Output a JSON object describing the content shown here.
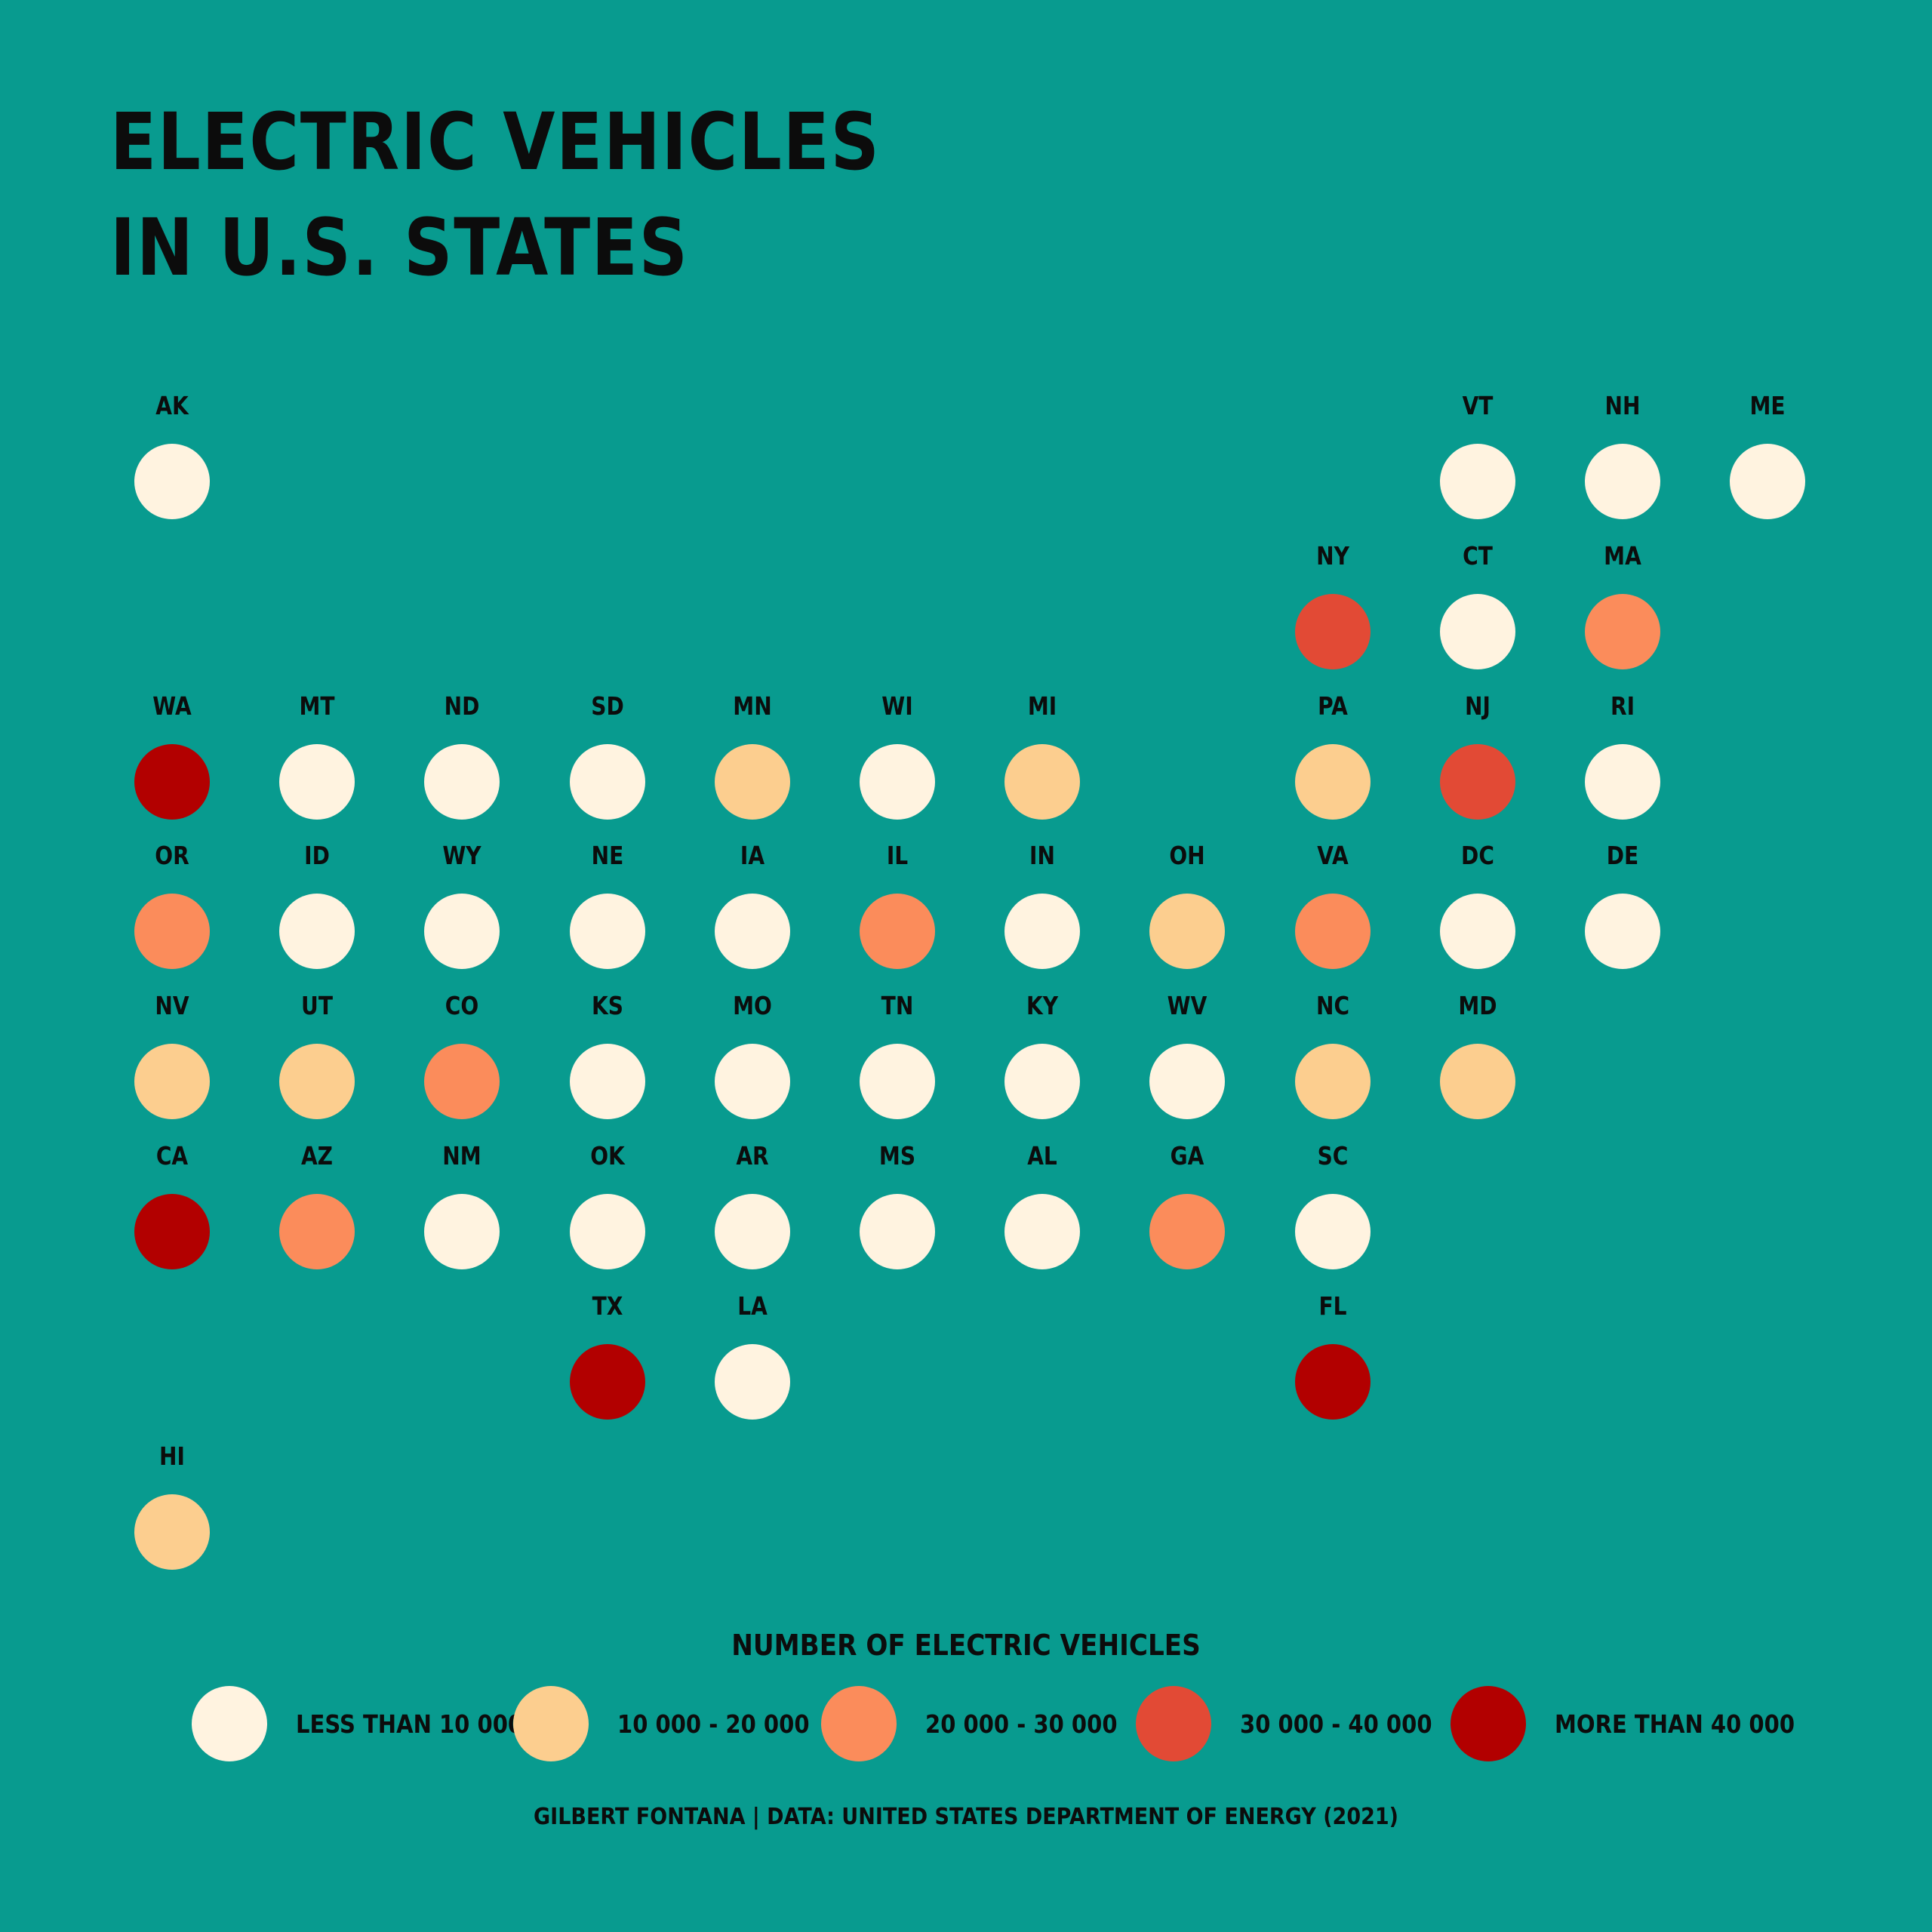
{
  "title_lines": [
    "ELECTRIC VEHICLES",
    "IN U.S. STATES"
  ],
  "colors": {
    "background": "#089b8f",
    "text": "#0c0c0c",
    "classes": [
      "#fff3e0",
      "#fcce8f",
      "#fb8c5b",
      "#e24a35",
      "#b20000"
    ]
  },
  "chart_data": {
    "type": "tile-map",
    "legend_title": "NUMBER OF ELECTRIC VEHICLES",
    "classes": [
      {
        "label": "LESS THAN 10 000",
        "color": "#fff3e0"
      },
      {
        "label": "10 000 - 20 000",
        "color": "#fcce8f"
      },
      {
        "label": "20 000 - 30 000",
        "color": "#fb8c5b"
      },
      {
        "label": "30 000 - 40 000",
        "color": "#e24a35"
      },
      {
        "label": "MORE THAN 40 000",
        "color": "#b20000"
      }
    ],
    "states": [
      {
        "abbr": "AK",
        "row": 0,
        "col": 0,
        "class": 0
      },
      {
        "abbr": "VT",
        "row": 0,
        "col": 9,
        "class": 0
      },
      {
        "abbr": "NH",
        "row": 0,
        "col": 10,
        "class": 0
      },
      {
        "abbr": "ME",
        "row": 0,
        "col": 11,
        "class": 0
      },
      {
        "abbr": "NY",
        "row": 1,
        "col": 8,
        "class": 3
      },
      {
        "abbr": "CT",
        "row": 1,
        "col": 9,
        "class": 0
      },
      {
        "abbr": "MA",
        "row": 1,
        "col": 10,
        "class": 2
      },
      {
        "abbr": "WA",
        "row": 2,
        "col": 0,
        "class": 4
      },
      {
        "abbr": "MT",
        "row": 2,
        "col": 1,
        "class": 0
      },
      {
        "abbr": "ND",
        "row": 2,
        "col": 2,
        "class": 0
      },
      {
        "abbr": "SD",
        "row": 2,
        "col": 3,
        "class": 0
      },
      {
        "abbr": "MN",
        "row": 2,
        "col": 4,
        "class": 1
      },
      {
        "abbr": "WI",
        "row": 2,
        "col": 5,
        "class": 0
      },
      {
        "abbr": "MI",
        "row": 2,
        "col": 6,
        "class": 1
      },
      {
        "abbr": "PA",
        "row": 2,
        "col": 8,
        "class": 1
      },
      {
        "abbr": "NJ",
        "row": 2,
        "col": 9,
        "class": 3
      },
      {
        "abbr": "RI",
        "row": 2,
        "col": 10,
        "class": 0
      },
      {
        "abbr": "OR",
        "row": 3,
        "col": 0,
        "class": 2
      },
      {
        "abbr": "ID",
        "row": 3,
        "col": 1,
        "class": 0
      },
      {
        "abbr": "WY",
        "row": 3,
        "col": 2,
        "class": 0
      },
      {
        "abbr": "NE",
        "row": 3,
        "col": 3,
        "class": 0
      },
      {
        "abbr": "IA",
        "row": 3,
        "col": 4,
        "class": 0
      },
      {
        "abbr": "IL",
        "row": 3,
        "col": 5,
        "class": 2
      },
      {
        "abbr": "IN",
        "row": 3,
        "col": 6,
        "class": 0
      },
      {
        "abbr": "OH",
        "row": 3,
        "col": 7,
        "class": 1
      },
      {
        "abbr": "VA",
        "row": 3,
        "col": 8,
        "class": 2
      },
      {
        "abbr": "DC",
        "row": 3,
        "col": 9,
        "class": 0
      },
      {
        "abbr": "DE",
        "row": 3,
        "col": 10,
        "class": 0
      },
      {
        "abbr": "NV",
        "row": 4,
        "col": 0,
        "class": 1
      },
      {
        "abbr": "UT",
        "row": 4,
        "col": 1,
        "class": 1
      },
      {
        "abbr": "CO",
        "row": 4,
        "col": 2,
        "class": 2
      },
      {
        "abbr": "KS",
        "row": 4,
        "col": 3,
        "class": 0
      },
      {
        "abbr": "MO",
        "row": 4,
        "col": 4,
        "class": 0
      },
      {
        "abbr": "TN",
        "row": 4,
        "col": 5,
        "class": 0
      },
      {
        "abbr": "KY",
        "row": 4,
        "col": 6,
        "class": 0
      },
      {
        "abbr": "WV",
        "row": 4,
        "col": 7,
        "class": 0
      },
      {
        "abbr": "NC",
        "row": 4,
        "col": 8,
        "class": 1
      },
      {
        "abbr": "MD",
        "row": 4,
        "col": 9,
        "class": 1
      },
      {
        "abbr": "CA",
        "row": 5,
        "col": 0,
        "class": 4
      },
      {
        "abbr": "AZ",
        "row": 5,
        "col": 1,
        "class": 2
      },
      {
        "abbr": "NM",
        "row": 5,
        "col": 2,
        "class": 0
      },
      {
        "abbr": "OK",
        "row": 5,
        "col": 3,
        "class": 0
      },
      {
        "abbr": "AR",
        "row": 5,
        "col": 4,
        "class": 0
      },
      {
        "abbr": "MS",
        "row": 5,
        "col": 5,
        "class": 0
      },
      {
        "abbr": "AL",
        "row": 5,
        "col": 6,
        "class": 0
      },
      {
        "abbr": "GA",
        "row": 5,
        "col": 7,
        "class": 2
      },
      {
        "abbr": "SC",
        "row": 5,
        "col": 8,
        "class": 0
      },
      {
        "abbr": "TX",
        "row": 6,
        "col": 3,
        "class": 4
      },
      {
        "abbr": "LA",
        "row": 6,
        "col": 4,
        "class": 0
      },
      {
        "abbr": "FL",
        "row": 6,
        "col": 8,
        "class": 4
      },
      {
        "abbr": "HI",
        "row": 7,
        "col": 0,
        "class": 1
      }
    ]
  },
  "credit": "GILBERT FONTANA | DATA: UNITED STATES DEPARTMENT OF ENERGY (2021)"
}
